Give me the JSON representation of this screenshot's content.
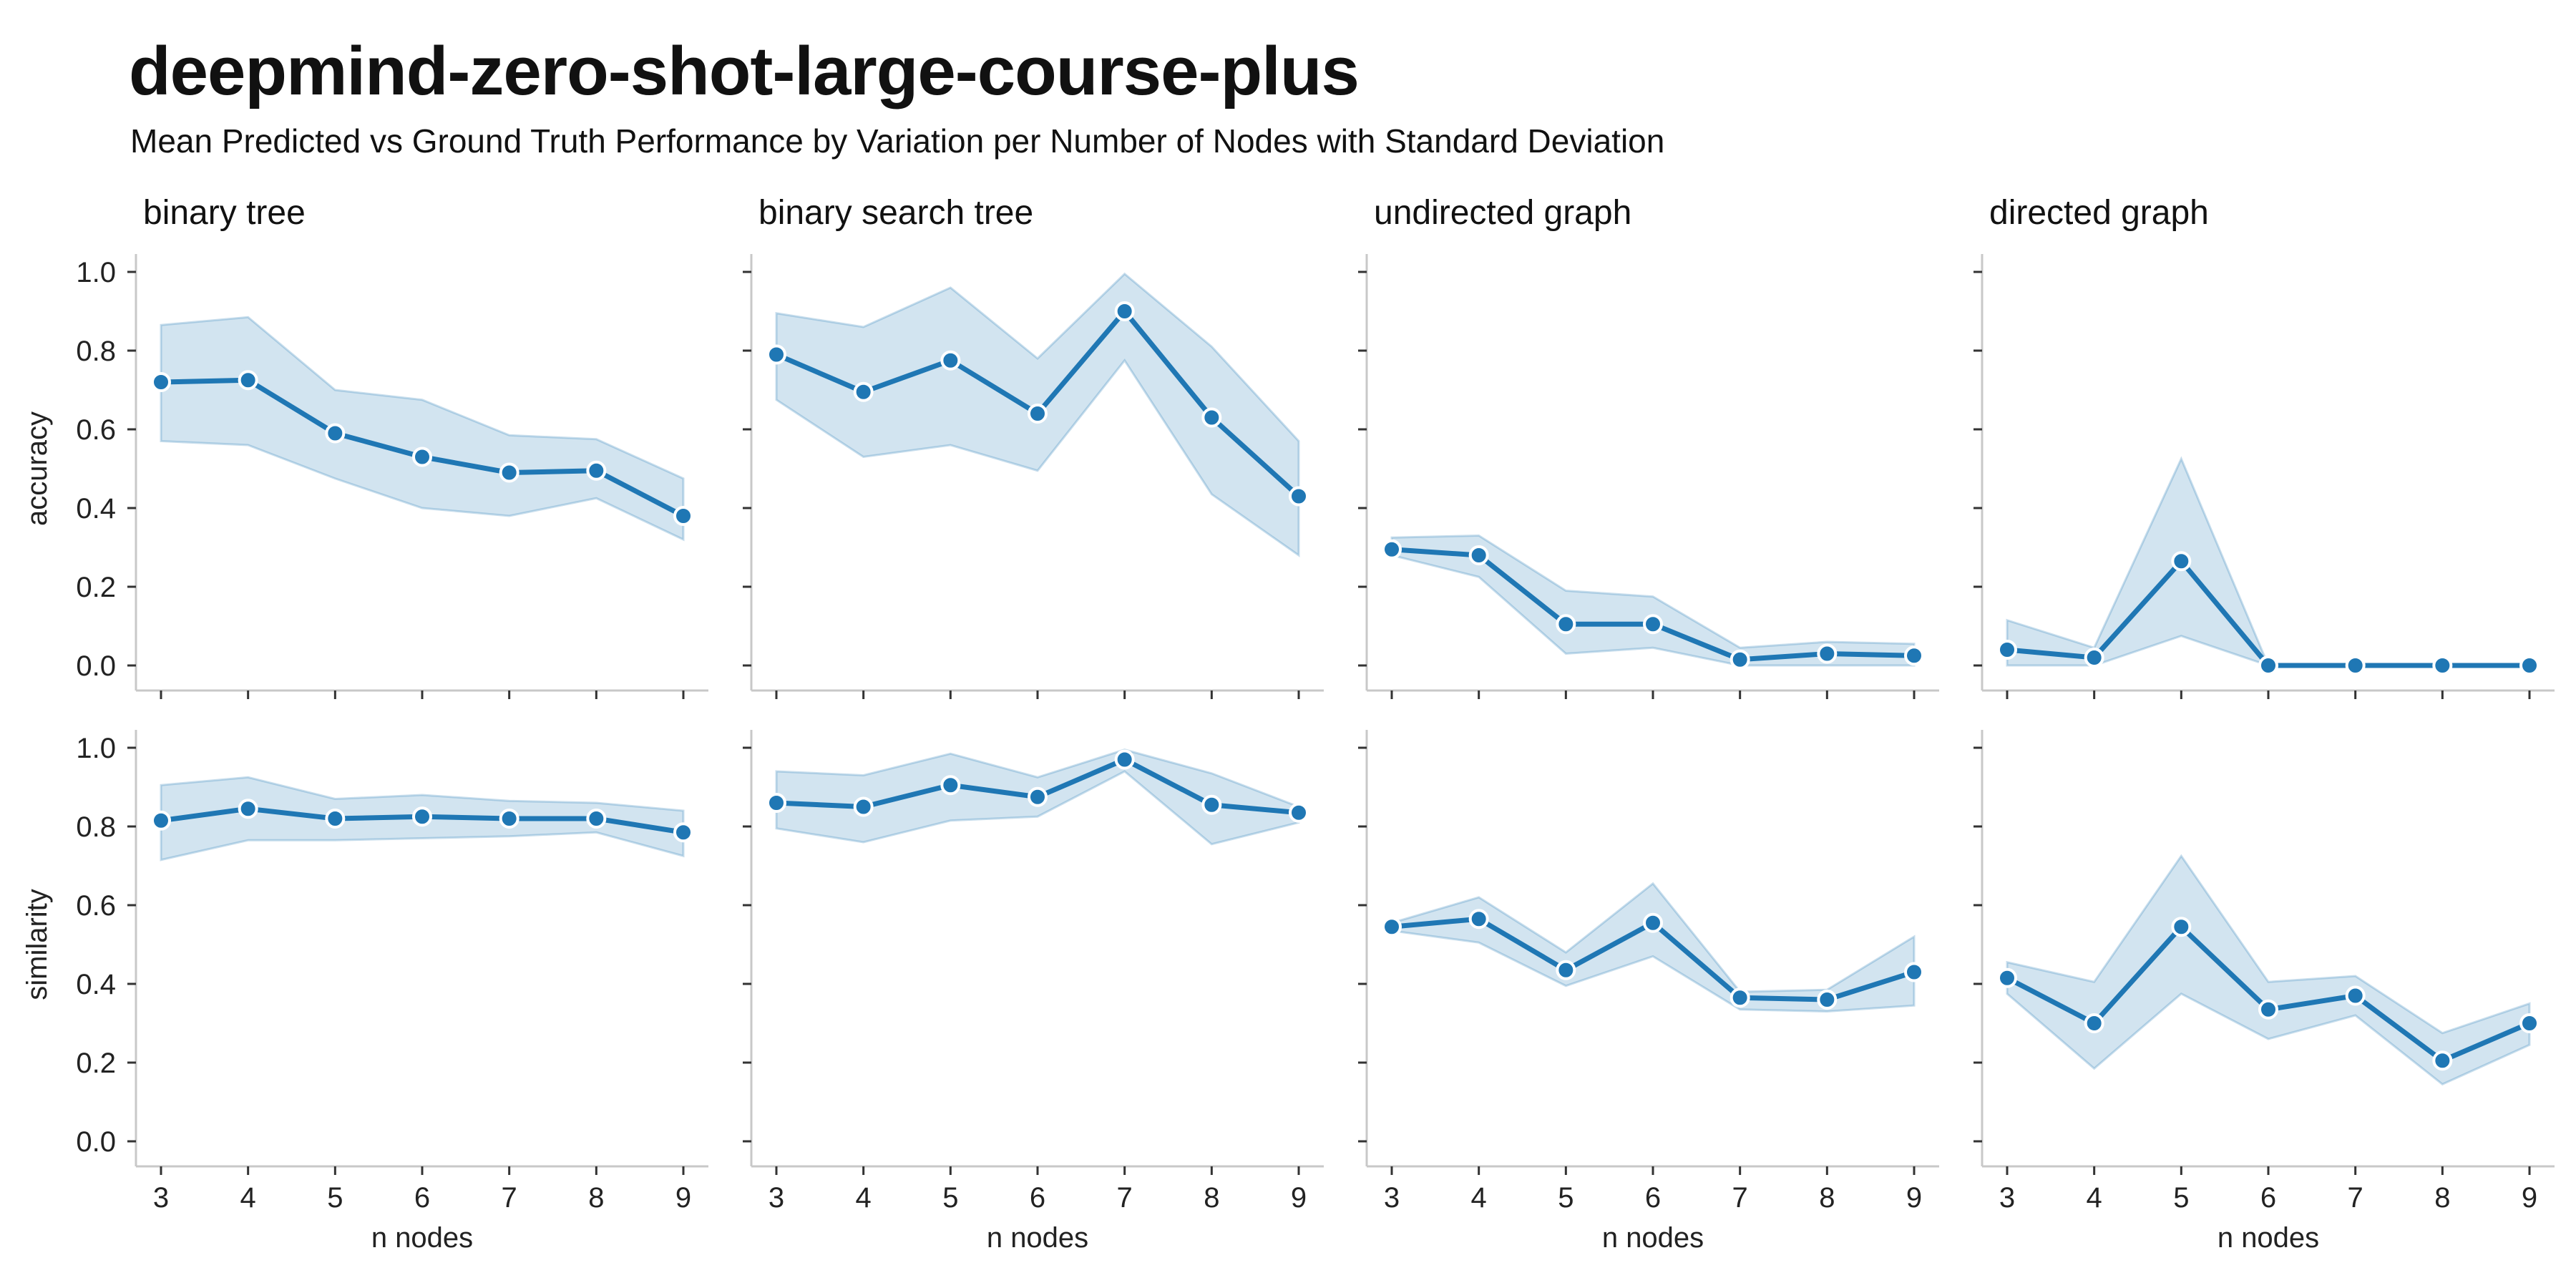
{
  "title": "deepmind-zero-shot-large-course-plus",
  "subtitle": "Mean Predicted vs Ground Truth Performance by Variation per Number of Nodes with Standard Deviation",
  "colors": {
    "series": "#1f77b4",
    "band": "#1f77b4",
    "axis": "#c8c8c8"
  },
  "chart_data": {
    "type": "line",
    "layout": "facet-grid 2x4",
    "x": [
      3,
      4,
      5,
      6,
      7,
      8,
      9
    ],
    "xlabel": "n nodes",
    "xticks": [
      "3",
      "4",
      "5",
      "6",
      "7",
      "8",
      "9"
    ],
    "ylim": [
      0,
      1
    ],
    "yticks": [
      "0.0",
      "0.2",
      "0.4",
      "0.6",
      "0.8",
      "1.0"
    ],
    "grid": false,
    "columns": [
      "binary tree",
      "binary search tree",
      "undirected graph",
      "directed graph"
    ],
    "rows": [
      "accuracy",
      "similarity"
    ],
    "panels": [
      {
        "row": "accuracy",
        "column": "binary tree",
        "mean": [
          0.72,
          0.725,
          0.59,
          0.53,
          0.49,
          0.495,
          0.38
        ],
        "lower": [
          0.57,
          0.56,
          0.475,
          0.4,
          0.38,
          0.425,
          0.32
        ],
        "upper": [
          0.865,
          0.885,
          0.7,
          0.675,
          0.585,
          0.575,
          0.475
        ]
      },
      {
        "row": "accuracy",
        "column": "binary search tree",
        "mean": [
          0.79,
          0.695,
          0.775,
          0.64,
          0.9,
          0.63,
          0.43
        ],
        "lower": [
          0.675,
          0.53,
          0.56,
          0.495,
          0.775,
          0.435,
          0.28
        ],
        "upper": [
          0.895,
          0.86,
          0.96,
          0.78,
          0.995,
          0.81,
          0.57
        ]
      },
      {
        "row": "accuracy",
        "column": "undirected graph",
        "mean": [
          0.295,
          0.28,
          0.105,
          0.105,
          0.015,
          0.03,
          0.025
        ],
        "lower": [
          0.28,
          0.225,
          0.03,
          0.045,
          0.0,
          0.0,
          0.0
        ],
        "upper": [
          0.325,
          0.33,
          0.19,
          0.175,
          0.045,
          0.06,
          0.055
        ]
      },
      {
        "row": "accuracy",
        "column": "directed graph",
        "mean": [
          0.04,
          0.02,
          0.265,
          0.0,
          0.0,
          0.0,
          0.0
        ],
        "lower": [
          0.0,
          0.0,
          0.075,
          0.0,
          0.0,
          0.0,
          0.0
        ],
        "upper": [
          0.115,
          0.045,
          0.525,
          0.0,
          0.0,
          0.0,
          0.0
        ]
      },
      {
        "row": "similarity",
        "column": "binary tree",
        "mean": [
          0.815,
          0.845,
          0.82,
          0.825,
          0.82,
          0.82,
          0.785
        ],
        "lower": [
          0.715,
          0.765,
          0.765,
          0.77,
          0.775,
          0.785,
          0.725
        ],
        "upper": [
          0.905,
          0.925,
          0.87,
          0.88,
          0.865,
          0.86,
          0.84
        ]
      },
      {
        "row": "similarity",
        "column": "binary search tree",
        "mean": [
          0.86,
          0.85,
          0.905,
          0.875,
          0.97,
          0.855,
          0.835
        ],
        "lower": [
          0.795,
          0.76,
          0.815,
          0.825,
          0.94,
          0.755,
          0.81
        ],
        "upper": [
          0.94,
          0.93,
          0.985,
          0.925,
          0.995,
          0.935,
          0.85
        ]
      },
      {
        "row": "similarity",
        "column": "undirected graph",
        "mean": [
          0.545,
          0.565,
          0.435,
          0.555,
          0.365,
          0.36,
          0.43
        ],
        "lower": [
          0.535,
          0.505,
          0.395,
          0.47,
          0.335,
          0.33,
          0.345
        ],
        "upper": [
          0.555,
          0.62,
          0.48,
          0.655,
          0.38,
          0.385,
          0.52
        ]
      },
      {
        "row": "similarity",
        "column": "directed graph",
        "mean": [
          0.415,
          0.3,
          0.545,
          0.335,
          0.37,
          0.205,
          0.3
        ],
        "lower": [
          0.375,
          0.185,
          0.375,
          0.26,
          0.32,
          0.145,
          0.245
        ],
        "upper": [
          0.455,
          0.405,
          0.725,
          0.405,
          0.42,
          0.275,
          0.35
        ]
      }
    ]
  }
}
